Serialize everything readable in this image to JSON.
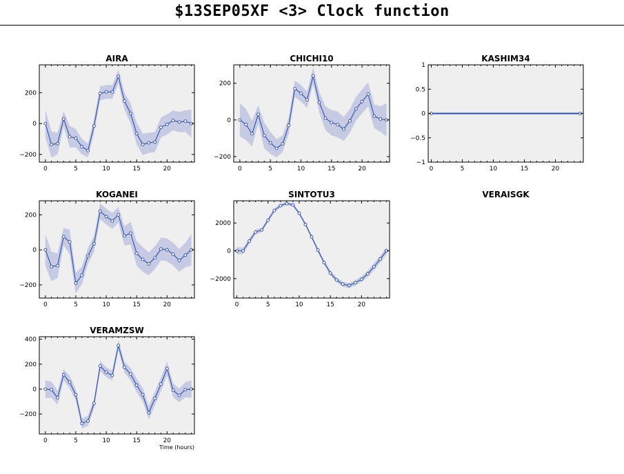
{
  "page_title": "$13SEP05XF <3>  Clock function",
  "colors": {
    "band": "#c6cae2",
    "line": "#2b4fae",
    "panel_bg": "#efefef",
    "marker_fill": "#ffffff"
  },
  "chart_data": [
    {
      "type": "line",
      "title": "AIRA",
      "x": [
        0,
        1,
        2,
        3,
        4,
        5,
        6,
        7,
        8,
        9,
        10,
        11,
        12,
        13,
        14,
        15,
        16,
        17,
        18,
        19,
        20,
        21,
        22,
        23,
        24
      ],
      "y": [
        0,
        -135,
        -130,
        30,
        -85,
        -95,
        -150,
        -175,
        -15,
        195,
        205,
        205,
        305,
        145,
        65,
        -65,
        -135,
        -125,
        -120,
        -25,
        -5,
        20,
        10,
        15,
        0
      ],
      "err": [
        90,
        85,
        70,
        50,
        70,
        60,
        50,
        45,
        45,
        45,
        45,
        45,
        45,
        55,
        65,
        70,
        70,
        65,
        65,
        65,
        65,
        65,
        65,
        70,
        90
      ],
      "xlim": [
        -1,
        24.5
      ],
      "ylim": [
        -250,
        380
      ],
      "xticks": [
        0,
        5,
        10,
        15,
        20
      ],
      "yticks": [
        -200,
        0,
        200
      ],
      "ytick_labels": [
        "−200",
        "0",
        "200"
      ],
      "xlabel": "",
      "ylabel": ""
    },
    {
      "type": "line",
      "title": "CHICHI10",
      "x": [
        0,
        1,
        2,
        3,
        4,
        5,
        6,
        7,
        8,
        9,
        10,
        11,
        12,
        13,
        14,
        15,
        16,
        17,
        18,
        19,
        20,
        21,
        22,
        23,
        24
      ],
      "y": [
        0,
        -25,
        -75,
        30,
        -85,
        -125,
        -155,
        -130,
        -30,
        170,
        145,
        110,
        240,
        95,
        10,
        -15,
        -25,
        -50,
        -5,
        60,
        100,
        140,
        20,
        5,
        0
      ],
      "err": [
        90,
        85,
        70,
        50,
        70,
        60,
        50,
        45,
        45,
        45,
        45,
        45,
        45,
        55,
        65,
        70,
        70,
        65,
        65,
        65,
        65,
        65,
        65,
        70,
        90
      ],
      "xlim": [
        -1,
        24.5
      ],
      "ylim": [
        -230,
        300
      ],
      "xticks": [
        0,
        5,
        10,
        15,
        20
      ],
      "yticks": [
        -200,
        0,
        200
      ],
      "ytick_labels": [
        "−200",
        "0",
        "200"
      ],
      "xlabel": "",
      "ylabel": ""
    },
    {
      "type": "line",
      "title": "KASHIM34",
      "x": [
        0,
        24
      ],
      "y": [
        0,
        0
      ],
      "err": [
        0,
        0
      ],
      "xlim": [
        -0.5,
        24.5
      ],
      "ylim": [
        -1,
        1
      ],
      "xticks": [
        0,
        5,
        10,
        15,
        20
      ],
      "yticks": [
        -1,
        -0.5,
        0,
        0.5,
        1
      ],
      "ytick_labels": [
        "−1",
        "−0.5",
        "0",
        "0.5",
        "1"
      ],
      "xlabel": "",
      "ylabel": ""
    },
    {
      "type": "line",
      "title": "KOGANEI",
      "x": [
        0,
        1,
        2,
        3,
        4,
        5,
        6,
        7,
        8,
        9,
        10,
        11,
        12,
        13,
        14,
        15,
        16,
        17,
        18,
        19,
        20,
        21,
        22,
        23,
        24
      ],
      "y": [
        0,
        -95,
        -90,
        75,
        45,
        -190,
        -145,
        -35,
        35,
        220,
        190,
        165,
        200,
        80,
        95,
        -20,
        -55,
        -80,
        -45,
        5,
        0,
        -25,
        -60,
        -30,
        0
      ],
      "err": [
        90,
        85,
        70,
        50,
        70,
        60,
        50,
        45,
        45,
        45,
        45,
        45,
        45,
        55,
        65,
        70,
        70,
        65,
        65,
        65,
        65,
        65,
        65,
        70,
        90
      ],
      "xlim": [
        -1,
        24.5
      ],
      "ylim": [
        -275,
        280
      ],
      "xticks": [
        0,
        5,
        10,
        15,
        20
      ],
      "yticks": [
        -200,
        0,
        200
      ],
      "ytick_labels": [
        "−200",
        "0",
        "200"
      ],
      "xlabel": "",
      "ylabel": ""
    },
    {
      "type": "line",
      "title": "SINTOTU3",
      "x": [
        0,
        1,
        2,
        3,
        4,
        5,
        6,
        7,
        8,
        9,
        10,
        11,
        12,
        13,
        14,
        15,
        16,
        17,
        18,
        19,
        20,
        21,
        22,
        23,
        24
      ],
      "y": [
        0,
        0,
        700,
        1350,
        1500,
        2200,
        2900,
        3250,
        3400,
        3300,
        2700,
        1900,
        1000,
        50,
        -850,
        -1600,
        -2100,
        -2400,
        -2500,
        -2300,
        -2050,
        -1650,
        -1150,
        -600,
        0
      ],
      "err": [
        260,
        240,
        200,
        180,
        160,
        150,
        140,
        130,
        120,
        120,
        120,
        130,
        140,
        150,
        160,
        170,
        180,
        180,
        180,
        190,
        200,
        220,
        240,
        250,
        260
      ],
      "xlim": [
        -0.5,
        24.5
      ],
      "ylim": [
        -3400,
        3600
      ],
      "xticks": [
        0,
        5,
        10,
        15,
        20
      ],
      "yticks": [
        -2000,
        0,
        2000
      ],
      "ytick_labels": [
        "−2000",
        "0",
        "2000"
      ],
      "xlabel": "",
      "ylabel": ""
    },
    {
      "type": "empty",
      "title": "VERAISGK"
    },
    {
      "type": "line",
      "title": "VERAMZSW",
      "x": [
        0,
        1,
        2,
        3,
        4,
        5,
        6,
        7,
        8,
        9,
        10,
        11,
        12,
        13,
        14,
        15,
        16,
        17,
        18,
        19,
        20,
        21,
        22,
        23,
        24
      ],
      "y": [
        0,
        -5,
        -70,
        115,
        55,
        -45,
        -275,
        -255,
        -115,
        185,
        135,
        110,
        350,
        175,
        120,
        30,
        -45,
        -190,
        -75,
        40,
        165,
        -10,
        -50,
        -5,
        0
      ],
      "err": [
        70,
        65,
        55,
        45,
        50,
        45,
        40,
        40,
        40,
        40,
        40,
        40,
        40,
        45,
        50,
        55,
        55,
        55,
        55,
        55,
        55,
        55,
        55,
        60,
        70
      ],
      "xlim": [
        -1,
        24.5
      ],
      "ylim": [
        -360,
        420
      ],
      "xticks": [
        0,
        5,
        10,
        15,
        20
      ],
      "yticks": [
        -200,
        0,
        200,
        400
      ],
      "ytick_labels": [
        "−200",
        "0",
        "200",
        "400"
      ],
      "xlabel": "Time (hours)",
      "ylabel": ""
    }
  ]
}
